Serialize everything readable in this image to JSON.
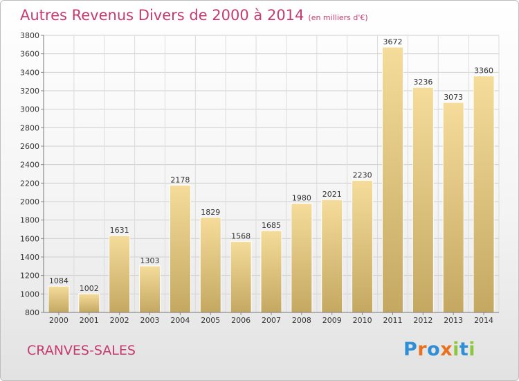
{
  "chart_data": {
    "type": "bar",
    "title": "Autres Revenus Divers de 2000 à 2014",
    "subtitle": "(en milliers d'€)",
    "categories": [
      "2000",
      "2001",
      "2002",
      "2003",
      "2004",
      "2005",
      "2006",
      "2007",
      "2008",
      "2009",
      "2010",
      "2011",
      "2012",
      "2013",
      "2014"
    ],
    "values": [
      1084,
      1002,
      1631,
      1303,
      2178,
      1829,
      1568,
      1685,
      1980,
      2021,
      2230,
      3672,
      3236,
      3073,
      3360
    ],
    "ylim": [
      800,
      3800
    ],
    "yticks": [
      800,
      1000,
      1200,
      1400,
      1600,
      1800,
      2000,
      2200,
      2400,
      2600,
      2800,
      3000,
      3200,
      3400,
      3600,
      3800
    ],
    "grid": true,
    "bar_color_top": "#f5dc9a",
    "bar_color_bottom": "#c4a862"
  },
  "footer": {
    "location": "CRANVES-SALES",
    "brand": "Proxiti",
    "brand_colors": [
      "#2f8fd6",
      "#e8701f",
      "#2f8fd6",
      "#e8701f",
      "#8cc63f",
      "#2f8fd6",
      "#8cc63f"
    ]
  }
}
